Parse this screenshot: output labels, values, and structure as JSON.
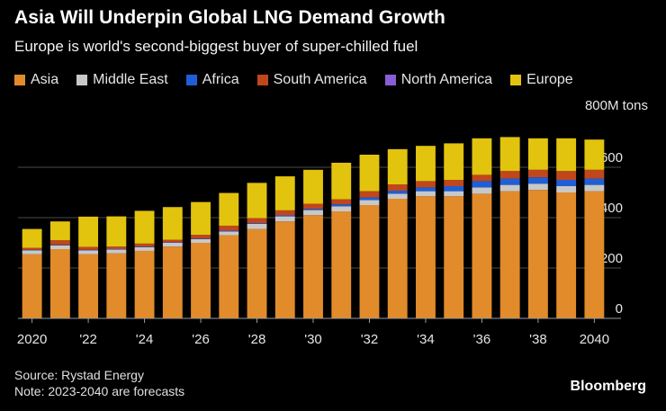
{
  "header": {
    "title": "Asia Will Underpin Global LNG Demand Growth",
    "subtitle": "Europe is world's second-biggest buyer of super-chilled fuel"
  },
  "chart_data": {
    "type": "bar",
    "stacked": true,
    "title": "Asia Will Underpin Global LNG Demand Growth",
    "ylabel": "800M tons",
    "ylim": [
      0,
      800
    ],
    "yticks": [
      0,
      200,
      400,
      600
    ],
    "categories": [
      "2020",
      "2021",
      "2022",
      "2023",
      "2024",
      "2025",
      "2026",
      "2027",
      "2028",
      "2029",
      "2030",
      "2031",
      "2032",
      "2033",
      "2034",
      "2035",
      "2036",
      "2037",
      "2038",
      "2039",
      "2040"
    ],
    "xtick_labels": [
      "2020",
      "'22",
      "'24",
      "'26",
      "'28",
      "'30",
      "'32",
      "'34",
      "'36",
      "'38",
      "2040"
    ],
    "xtick_indices": [
      0,
      2,
      4,
      6,
      8,
      10,
      12,
      14,
      16,
      18,
      20
    ],
    "series": [
      {
        "name": "Asia",
        "color": "#E18B2B",
        "values": [
          255,
          275,
          255,
          258,
          268,
          285,
          300,
          330,
          355,
          385,
          410,
          425,
          450,
          475,
          485,
          485,
          495,
          505,
          510,
          500,
          505
        ]
      },
      {
        "name": "Middle East",
        "color": "#C8C8C8",
        "values": [
          15,
          15,
          15,
          15,
          15,
          15,
          15,
          15,
          20,
          20,
          20,
          20,
          20,
          20,
          20,
          20,
          25,
          25,
          25,
          25,
          25
        ]
      },
      {
        "name": "Africa",
        "color": "#1F5FD6",
        "values": [
          2,
          2,
          2,
          2,
          2,
          2,
          2,
          3,
          3,
          4,
          5,
          8,
          10,
          12,
          15,
          20,
          25,
          25,
          25,
          25,
          25
        ]
      },
      {
        "name": "South America",
        "color": "#C0461C",
        "values": [
          8,
          18,
          12,
          10,
          12,
          10,
          15,
          20,
          20,
          20,
          20,
          20,
          25,
          25,
          25,
          25,
          25,
          30,
          30,
          35,
          35
        ]
      },
      {
        "name": "North America",
        "color": "#8A5CD6",
        "values": [
          0,
          0,
          0,
          0,
          0,
          0,
          0,
          0,
          0,
          0,
          0,
          0,
          0,
          0,
          0,
          0,
          0,
          0,
          0,
          0,
          0
        ]
      },
      {
        "name": "Europe",
        "color": "#E2C30E",
        "values": [
          75,
          75,
          120,
          120,
          130,
          130,
          130,
          130,
          140,
          135,
          135,
          145,
          145,
          140,
          140,
          145,
          145,
          135,
          125,
          130,
          120
        ]
      }
    ],
    "gridlines": true
  },
  "footer": {
    "source": "Source: Rystad Energy",
    "note": "Note: 2023-2040 are forecasts"
  },
  "brand": "Bloomberg"
}
